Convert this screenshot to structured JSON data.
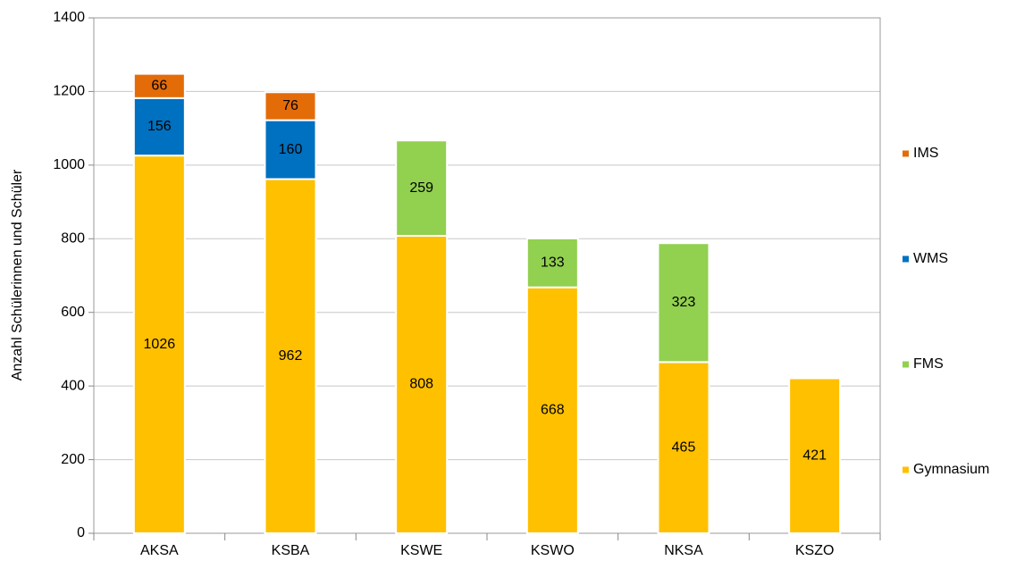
{
  "chart_data": {
    "type": "stacked-bar",
    "y_label": "Anzahl Schülerinnen und Schüler",
    "categories": [
      "AKSA",
      "KSBA",
      "KSWE",
      "KSWO",
      "NKSA",
      "KSZO"
    ],
    "series": [
      {
        "name": "Gymnasium",
        "color": "#ffc000",
        "values": [
          1026,
          962,
          808,
          668,
          465,
          421
        ]
      },
      {
        "name": "FMS",
        "color": "#92d050",
        "values": [
          null,
          null,
          259,
          133,
          323,
          null
        ]
      },
      {
        "name": "WMS",
        "color": "#0070c0",
        "values": [
          156,
          160,
          null,
          null,
          null,
          null
        ]
      },
      {
        "name": "IMS",
        "color": "#e36c09",
        "values": [
          66,
          76,
          null,
          null,
          null,
          null
        ]
      }
    ],
    "ylim": [
      0,
      1400
    ],
    "yticks": [
      0,
      200,
      400,
      600,
      800,
      1000,
      1200,
      1400
    ],
    "grid": true,
    "legend": "right"
  }
}
